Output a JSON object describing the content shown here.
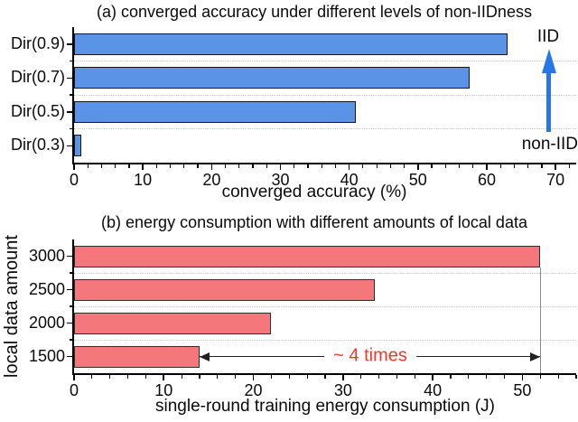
{
  "chart_data": [
    {
      "type": "bar",
      "orientation": "horizontal",
      "title": "(a) converged accuracy under different levels of non-IIDness",
      "categories": [
        "Dir(0.9)",
        "Dir(0.7)",
        "Dir(0.5)",
        "Dir(0.3)"
      ],
      "values": [
        63,
        57.5,
        41,
        1
      ],
      "xlabel": "converged accuracy (%)",
      "xlim": [
        0,
        73
      ],
      "x_major_ticks": [
        0,
        10,
        20,
        30,
        40,
        50,
        60,
        70
      ],
      "x_minor_step": 2,
      "grid": "dotted row separators",
      "legend": "none",
      "bar_color": "#5b94e6",
      "bar_border_color": "#16161f",
      "annotations": {
        "arrow_top_label": "IID",
        "arrow_bottom_label": "non-IID",
        "arrow_color": "#2577e8",
        "arrow_x": 69
      }
    },
    {
      "type": "bar",
      "orientation": "horizontal",
      "title": "(b) energy consumption with different amounts of local data",
      "categories": [
        "3000",
        "2500",
        "2000",
        "1500"
      ],
      "values": [
        52,
        33.5,
        22,
        14
      ],
      "xlabel": "single-round training energy consumption (J)",
      "ylabel": "local data amount",
      "xlim": [
        0,
        56
      ],
      "x_major_ticks": [
        0,
        10,
        20,
        30,
        40,
        50
      ],
      "x_minor_step": 2,
      "grid": "dotted row separators",
      "legend": "none",
      "bar_color": "#f3777b",
      "bar_border_color": "#332c2c",
      "annotations": {
        "ratio_label": "~ 4 times",
        "ratio_label_color": "#f2382b",
        "ratio_arrow_from": 14,
        "ratio_arrow_to": 52,
        "reference_line_x": 52,
        "reference_line_color": "#8a8a8a"
      }
    }
  ]
}
